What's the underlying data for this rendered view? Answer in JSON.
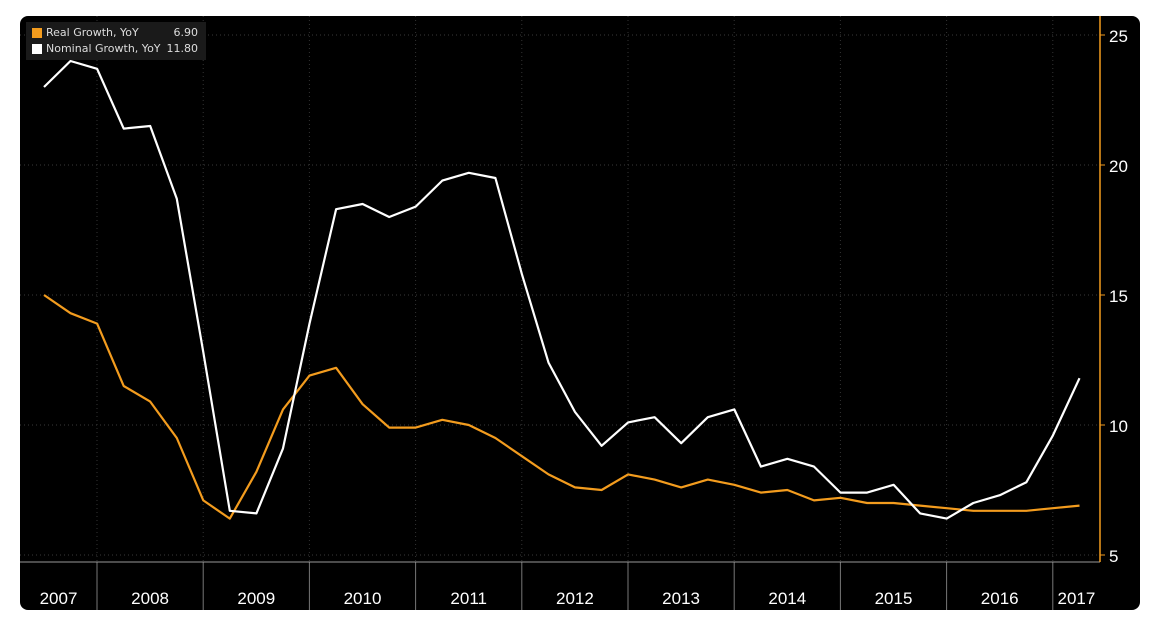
{
  "chart_data": {
    "type": "line",
    "title": "",
    "xlabel": "",
    "ylabel": "",
    "ylim": [
      5,
      25
    ],
    "yticks": [
      "5",
      "10",
      "15",
      "20",
      "25"
    ],
    "year_labels": [
      "2007",
      "2008",
      "2009",
      "2010",
      "2011",
      "2012",
      "2013",
      "2014",
      "2015",
      "2016",
      "2017"
    ],
    "x": [
      "2007Q2",
      "2007Q3",
      "2007Q4",
      "2008Q1",
      "2008Q2",
      "2008Q3",
      "2008Q4",
      "2009Q1",
      "2009Q2",
      "2009Q3",
      "2009Q4",
      "2010Q1",
      "2010Q2",
      "2010Q3",
      "2010Q4",
      "2011Q1",
      "2011Q2",
      "2011Q3",
      "2011Q4",
      "2012Q1",
      "2012Q2",
      "2012Q3",
      "2012Q4",
      "2013Q1",
      "2013Q2",
      "2013Q3",
      "2013Q4",
      "2014Q1",
      "2014Q2",
      "2014Q3",
      "2014Q4",
      "2015Q1",
      "2015Q2",
      "2015Q3",
      "2015Q4",
      "2016Q1",
      "2016Q2",
      "2016Q3",
      "2016Q4",
      "2017Q1"
    ],
    "series": [
      {
        "name": "Real Growth, YoY",
        "last_value": "6.90",
        "color": "#f39c1e",
        "values": [
          15.0,
          14.3,
          13.9,
          11.5,
          10.9,
          9.5,
          7.1,
          6.4,
          8.2,
          10.6,
          11.9,
          12.2,
          10.8,
          9.9,
          9.9,
          10.2,
          10.0,
          9.5,
          8.8,
          8.1,
          7.6,
          7.5,
          8.1,
          7.9,
          7.6,
          7.9,
          7.7,
          7.4,
          7.5,
          7.1,
          7.2,
          7.0,
          7.0,
          6.9,
          6.8,
          6.7,
          6.7,
          6.7,
          6.8,
          6.9
        ]
      },
      {
        "name": "Nominal Growth, YoY",
        "last_value": "11.80",
        "color": "#ffffff",
        "values": [
          23.0,
          24.0,
          23.7,
          21.4,
          21.5,
          18.7,
          12.8,
          6.7,
          6.6,
          9.1,
          13.9,
          18.3,
          18.5,
          18.0,
          18.4,
          19.4,
          19.7,
          19.5,
          15.8,
          12.4,
          10.5,
          9.2,
          10.1,
          10.3,
          9.3,
          10.3,
          10.6,
          8.4,
          8.7,
          8.4,
          7.4,
          7.4,
          7.7,
          6.6,
          6.4,
          7.0,
          7.3,
          7.8,
          9.6,
          11.8
        ]
      }
    ],
    "grid": true,
    "legend": "top-left",
    "axis_color": "#f39c1e"
  }
}
